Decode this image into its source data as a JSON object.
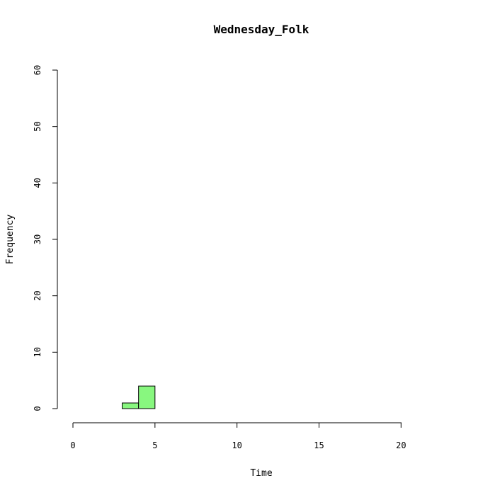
{
  "chart_data": {
    "type": "bar",
    "title": "Wednesday_Folk",
    "xlabel": "Time",
    "ylabel": "Frequency",
    "xlim": [
      0,
      24
    ],
    "ylim": [
      0,
      60
    ],
    "x_ticks": [
      "0",
      "5",
      "10",
      "15",
      "20"
    ],
    "y_ticks": [
      "0",
      "10",
      "20",
      "30",
      "40",
      "50",
      "60"
    ],
    "bins": [
      {
        "start": 0,
        "end": 1,
        "value": 0
      },
      {
        "start": 1,
        "end": 2,
        "value": 0
      },
      {
        "start": 2,
        "end": 3,
        "value": 0
      },
      {
        "start": 3,
        "end": 4,
        "value": 1
      },
      {
        "start": 4,
        "end": 5,
        "value": 4
      },
      {
        "start": 5,
        "end": 6,
        "value": 0
      },
      {
        "start": 6,
        "end": 7,
        "value": 0
      },
      {
        "start": 7,
        "end": 8,
        "value": 0
      },
      {
        "start": 8,
        "end": 9,
        "value": 0
      },
      {
        "start": 9,
        "end": 10,
        "value": 0
      },
      {
        "start": 10,
        "end": 11,
        "value": 0
      },
      {
        "start": 11,
        "end": 12,
        "value": 0
      },
      {
        "start": 12,
        "end": 13,
        "value": 0
      },
      {
        "start": 13,
        "end": 14,
        "value": 0
      },
      {
        "start": 14,
        "end": 15,
        "value": 0
      },
      {
        "start": 15,
        "end": 16,
        "value": 0
      },
      {
        "start": 16,
        "end": 17,
        "value": 0
      },
      {
        "start": 17,
        "end": 18,
        "value": 0
      },
      {
        "start": 18,
        "end": 19,
        "value": 0
      },
      {
        "start": 19,
        "end": 20,
        "value": 0
      },
      {
        "start": 20,
        "end": 21,
        "value": 0
      },
      {
        "start": 21,
        "end": 22,
        "value": 0
      },
      {
        "start": 22,
        "end": 23,
        "value": 0
      },
      {
        "start": 23,
        "end": 24,
        "value": 0
      }
    ],
    "bar_color": "#88f77f",
    "grid": false
  }
}
